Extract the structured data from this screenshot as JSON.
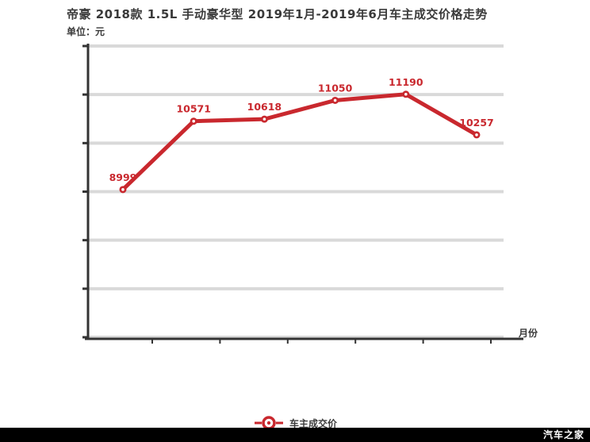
{
  "title": "帝豪 2018款 1.5L 手动豪华型 2019年1月-2019年6月车主成交价格走势",
  "unit_label": "单位：元",
  "x_axis_label": "月份",
  "legend": {
    "label": "车主成交价"
  },
  "watermark": "汽车之家",
  "colors": {
    "line": "#c9282e",
    "point_label": "#c9282e",
    "marker_core": "#ffffff",
    "grid": "#d9d9d9",
    "axis": "#333333",
    "title_text": "#3a3a3a",
    "watermark_bg": "#000000",
    "watermark_text": "#ffffff"
  },
  "chart_data": {
    "type": "line",
    "title": "帝豪 2018款 1.5L 手动豪华型 2019年1月-2019年6月车主成交价格走势",
    "ylabel": "单位：元",
    "xlabel": "月份",
    "grid": true,
    "gridline_count": 7,
    "ylim": [
      5600,
      12300
    ],
    "x_tick_labels_visible": false,
    "y_tick_labels_visible": false,
    "legend_position": "bottom-center",
    "n_points": 6,
    "series": [
      {
        "name": "车主成交价",
        "values": [
          8999,
          10571,
          10618,
          11050,
          11190,
          10257
        ],
        "point_labels": [
          "8999",
          "10571",
          "10618",
          "11050",
          "11190",
          "10257"
        ]
      }
    ]
  }
}
